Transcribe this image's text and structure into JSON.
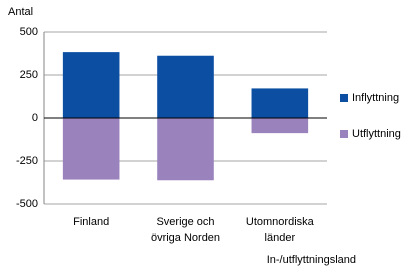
{
  "chart_data": {
    "type": "bar",
    "y_label": "Antal",
    "x_label": "In-/utflyttningsland",
    "categories": [
      [
        "Finland"
      ],
      [
        "Sverige och",
        "övriga Norden"
      ],
      [
        "Utomnordiska",
        "länder"
      ]
    ],
    "series": [
      {
        "name": "Inflyttning",
        "color": "#0b4ea2",
        "values": [
          383,
          362,
          172
        ]
      },
      {
        "name": "Utflyttning",
        "color": "#9a83bd",
        "values": [
          -358,
          -362,
          -88
        ]
      }
    ],
    "ylim": [
      -500,
      500
    ],
    "yticks": [
      -500,
      -250,
      0,
      250,
      500
    ],
    "grid": true,
    "legend": "right"
  }
}
